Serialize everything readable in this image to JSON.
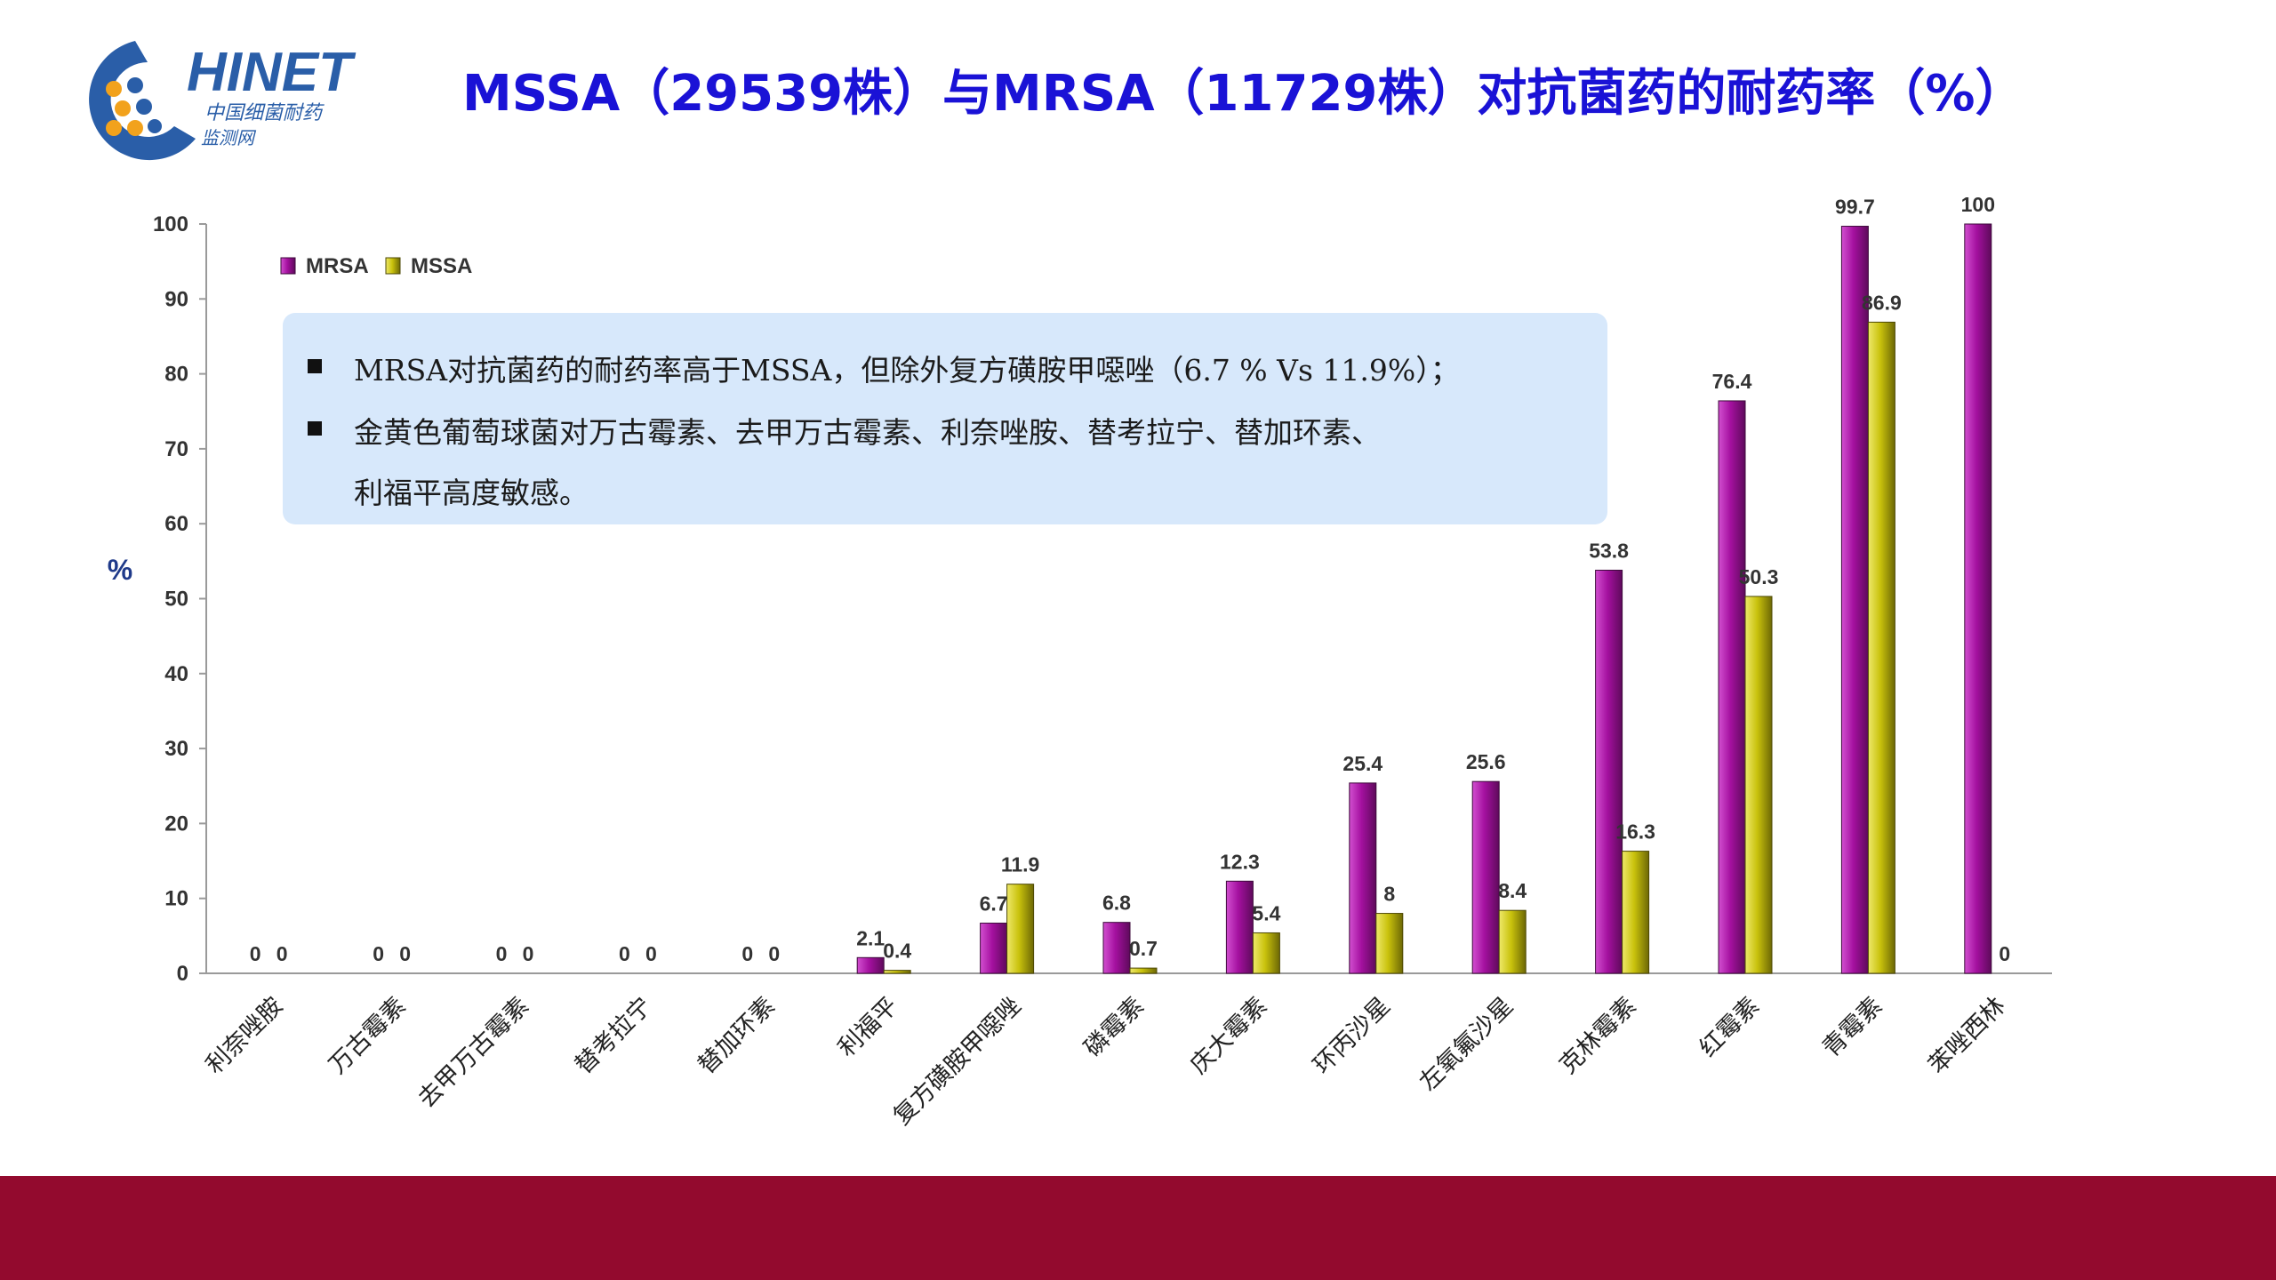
{
  "logo": {
    "brand": "HINET",
    "subtitle_1": "中国细菌耐药",
    "subtitle_2": "监测网"
  },
  "title": "MSSA（29539株）与MRSA（11729株）对抗菌药的耐药率（%）",
  "note": {
    "line1": "MRSA对抗菌药的耐药率高于MSSA，但除外复方磺胺甲噁唑（6.7 % Vs 11.9%）；",
    "line2": "金黄色葡萄球菌对万古霉素、去甲万古霉素、利奈唑胺、替考拉宁、替加环素、",
    "line3": "利福平高度敏感。"
  },
  "colors": {
    "mrsa": "#a4109f",
    "mssa": "#c9c20c",
    "title": "#1a12d6",
    "footer": "#930a2e",
    "note_bg": "#d7e8fb"
  },
  "chart_data": {
    "type": "bar",
    "ylabel": "%",
    "xlabel": "",
    "ylim": [
      0,
      100
    ],
    "yticks": [
      0,
      10,
      20,
      30,
      40,
      50,
      60,
      70,
      80,
      90,
      100
    ],
    "grid": false,
    "legend_position": "top-left",
    "categories": [
      "利奈唑胺",
      "万古霉素",
      "去甲万古霉素",
      "替考拉宁",
      "替加环素",
      "利福平",
      "复方磺胺甲噁唑",
      "磷霉素",
      "庆大霉素",
      "环丙沙星",
      "左氧氟沙星",
      "克林霉素",
      "红霉素",
      "青霉素",
      "苯唑西林"
    ],
    "series": [
      {
        "name": "MRSA",
        "values": [
          0,
          0,
          0,
          0,
          0,
          2.1,
          6.7,
          6.8,
          12.3,
          25.4,
          25.6,
          53.8,
          76.4,
          99.7,
          100
        ]
      },
      {
        "name": "MSSA",
        "values": [
          0,
          0,
          0,
          0,
          0,
          0.4,
          11.9,
          0.7,
          5.4,
          8,
          8.4,
          16.3,
          50.3,
          86.9,
          0
        ]
      }
    ]
  }
}
